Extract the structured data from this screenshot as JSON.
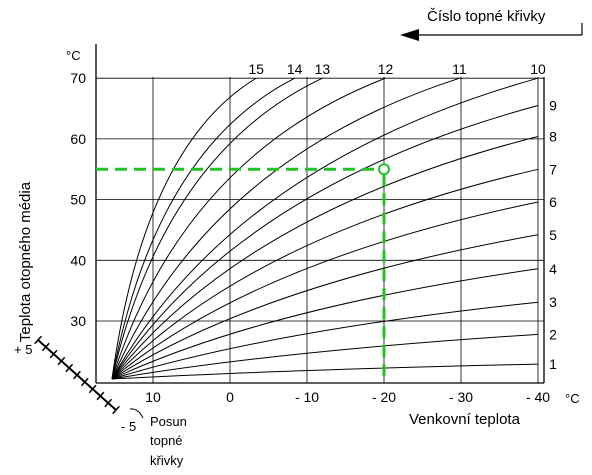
{
  "chart_data": {
    "type": "line",
    "ylabel": "Teplota otopného média",
    "xlabel": "Venkovní teplota",
    "x_unit": "°C",
    "y_unit": "°C",
    "legend_title": "Číslo topné křivky",
    "shift_label_lines": [
      "Posun",
      "topné",
      "křivky"
    ],
    "shift_plus_label": "+ 5",
    "shift_minus_label": "- 5",
    "shift_range": [
      -5,
      5
    ],
    "x_ticks": [
      {
        "value": 10,
        "label": "10"
      },
      {
        "value": 0,
        "label": "0"
      },
      {
        "value": -10,
        "label": "- 10"
      },
      {
        "value": -20,
        "label": "- 20"
      },
      {
        "value": -30,
        "label": "- 30"
      },
      {
        "value": -40,
        "label": "- 40"
      }
    ],
    "y_ticks": [
      {
        "value": 30,
        "label": "30"
      },
      {
        "value": 40,
        "label": "40"
      },
      {
        "value": 50,
        "label": "50"
      },
      {
        "value": 60,
        "label": "60"
      },
      {
        "value": 70,
        "label": "70"
      }
    ],
    "xlim": [
      20,
      -40
    ],
    "ylim": [
      20,
      72
    ],
    "grid": true,
    "series": [
      {
        "name": "1",
        "x": [
          20,
          -40
        ],
        "y": [
          20,
          22.9
        ]
      },
      {
        "name": "2",
        "x": [
          20,
          -40
        ],
        "y": [
          20,
          27.8
        ]
      },
      {
        "name": "3",
        "x": [
          20,
          -40
        ],
        "y": [
          20,
          33.1
        ]
      },
      {
        "name": "4",
        "x": [
          20,
          -40
        ],
        "y": [
          20,
          38.6
        ]
      },
      {
        "name": "5",
        "x": [
          20,
          -40
        ],
        "y": [
          20,
          44.2
        ]
      },
      {
        "name": "6",
        "x": [
          20,
          -40
        ],
        "y": [
          20,
          49.6
        ]
      },
      {
        "name": "7",
        "x": [
          20,
          -40
        ],
        "y": [
          20,
          55.0
        ]
      },
      {
        "name": "8",
        "x": [
          20,
          -40
        ],
        "y": [
          20,
          60.4
        ]
      },
      {
        "name": "9",
        "x": [
          20,
          -40
        ],
        "y": [
          20,
          65.5
        ]
      },
      {
        "name": "10",
        "x": [
          20,
          -40
        ],
        "y": [
          20,
          70.0
        ]
      },
      {
        "name": "11",
        "x": [
          20,
          -29.8
        ],
        "y": [
          20,
          70.0
        ]
      },
      {
        "name": "12",
        "x": [
          20,
          -20.2
        ],
        "y": [
          20,
          70.0
        ]
      },
      {
        "name": "13",
        "x": [
          20,
          -12.0
        ],
        "y": [
          20,
          70.0
        ]
      },
      {
        "name": "14",
        "x": [
          20,
          -8.4
        ],
        "y": [
          20,
          70.0
        ]
      },
      {
        "name": "15",
        "x": [
          20,
          -3.4
        ],
        "y": [
          20,
          70.0
        ]
      }
    ],
    "highlight_point": {
      "x": -20,
      "y": 55
    }
  }
}
